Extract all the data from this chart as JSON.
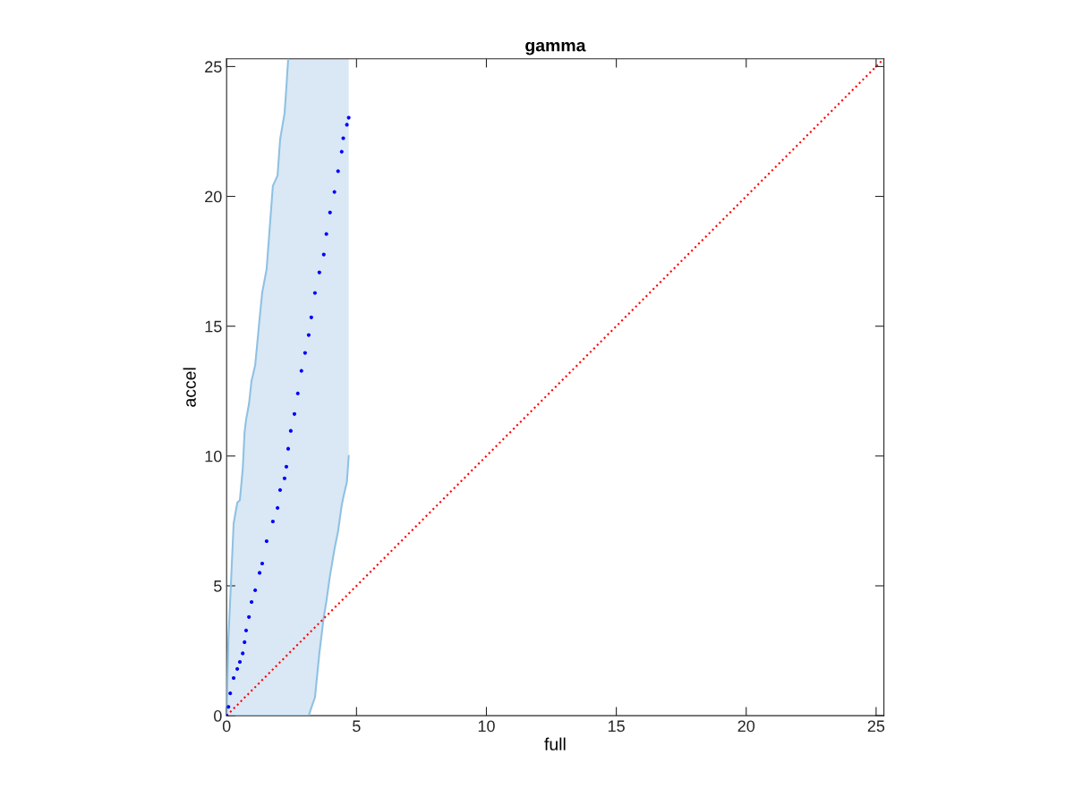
{
  "chart_data": {
    "type": "scatter",
    "title": "gamma",
    "xlabel": "full",
    "ylabel": "accel",
    "xlim": [
      0,
      25.3
    ],
    "ylim": [
      0,
      25.3
    ],
    "xticks": [
      0,
      5,
      10,
      15,
      20,
      25
    ],
    "yticks": [
      0,
      5,
      10,
      15,
      20,
      25
    ],
    "grid": false,
    "legend": false,
    "series": [
      {
        "color": "#0000ff",
        "marker": "circle",
        "x": [
          0,
          0.07,
          0.14,
          0.27,
          0.41,
          0.51,
          0.62,
          0.69,
          0.75,
          0.86,
          0.96,
          1.1,
          1.27,
          1.37,
          1.54,
          1.78,
          1.96,
          2.06,
          2.23,
          2.3,
          2.37,
          2.47,
          2.61,
          2.74,
          2.88,
          3.02,
          3.16,
          3.26,
          3.4,
          3.57,
          3.74,
          3.84,
          3.98,
          4.15,
          4.29,
          4.43,
          4.49,
          4.63,
          4.7
        ],
        "values": [
          0,
          0.34,
          0.86,
          1.45,
          1.8,
          2.07,
          2.4,
          2.83,
          3.28,
          3.8,
          4.38,
          4.83,
          5.5,
          5.86,
          6.72,
          7.48,
          8.0,
          8.69,
          9.14,
          9.59,
          10.28,
          10.97,
          11.62,
          12.41,
          13.28,
          13.97,
          14.66,
          15.34,
          16.28,
          17.07,
          17.76,
          18.55,
          19.38,
          20.17,
          20.97,
          21.72,
          22.24,
          22.76,
          23.03
        ],
        "lower": [
          0,
          0,
          0,
          0,
          0,
          0,
          0,
          0,
          0,
          0,
          0,
          0,
          0,
          0,
          0,
          0,
          0,
          0,
          0,
          0,
          0,
          0,
          0,
          0,
          0,
          0,
          0,
          0.3,
          0.7,
          2.4,
          3.8,
          4.4,
          5.4,
          6.4,
          7.1,
          8.1,
          8.4,
          9.0,
          10.0
        ],
        "upper": [
          0,
          3.0,
          4.5,
          7.4,
          8.2,
          8.3,
          9.5,
          10.9,
          11.4,
          12.0,
          12.9,
          13.5,
          15.3,
          16.3,
          17.2,
          20.4,
          20.8,
          22.2,
          23.2,
          24.2,
          25.3,
          25.3,
          25.3,
          25.3,
          25.3,
          25.3,
          25.3,
          25.3,
          25.3,
          25.3,
          25.3,
          25.3,
          25.3,
          25.3,
          25.3,
          25.3,
          25.3,
          25.3,
          25.3
        ]
      },
      {
        "type": "line",
        "color": "#8fc1e3",
        "marker": "none",
        "x": [
          0,
          0.07,
          0.14,
          0.27,
          0.41,
          0.51,
          0.62,
          0.69,
          0.75,
          0.86,
          0.96,
          1.1,
          1.27,
          1.37,
          1.54,
          1.78,
          1.96,
          2.06,
          2.23,
          2.3,
          2.37,
          2.47,
          2.61,
          2.74,
          2.88,
          3.02,
          3.16,
          3.26,
          3.4,
          3.57,
          3.74,
          3.84,
          3.98,
          4.15,
          4.29,
          4.43,
          4.49,
          4.63,
          4.7
        ],
        "values": [
          0,
          0,
          0,
          0,
          0,
          0,
          0,
          0,
          0,
          0,
          0,
          0,
          0,
          0,
          0,
          0,
          0,
          0,
          0,
          0,
          0,
          0,
          0,
          0,
          0,
          0,
          0,
          0.3,
          0.7,
          2.4,
          3.8,
          4.4,
          5.4,
          6.4,
          7.1,
          8.1,
          8.4,
          9.0,
          10.0
        ]
      },
      {
        "type": "line",
        "color": "#8fc1e3",
        "marker": "none",
        "x": [
          0,
          0.07,
          0.14,
          0.27,
          0.41,
          0.51,
          0.62,
          0.69,
          0.75,
          0.86,
          0.96,
          1.1,
          1.27,
          1.37,
          1.54,
          1.78,
          1.96,
          2.06,
          2.23,
          2.3,
          2.37
        ],
        "values": [
          0,
          3.0,
          4.5,
          7.4,
          8.2,
          8.3,
          9.5,
          10.9,
          11.4,
          12.0,
          12.9,
          13.5,
          15.3,
          16.3,
          17.2,
          20.4,
          20.8,
          22.2,
          23.2,
          24.2,
          25.3
        ]
      },
      {
        "type": "line",
        "color": "#ff0000",
        "line_style": "dotted",
        "marker": "none",
        "x": [
          0,
          25.3
        ],
        "values": [
          0,
          25.3
        ]
      }
    ]
  }
}
